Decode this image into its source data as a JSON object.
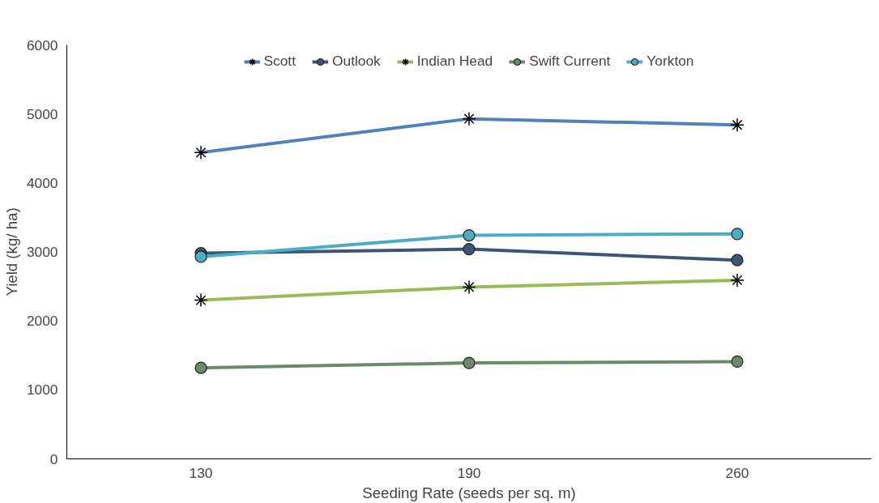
{
  "chart_data": {
    "type": "line",
    "xlabel": "Seeding Rate (seeds per sq. m)",
    "ylabel": "Yield (kg/ ha)",
    "categories": [
      "130",
      "190",
      "260"
    ],
    "ylim": [
      0,
      6000
    ],
    "yticks": [
      0,
      1000,
      2000,
      3000,
      4000,
      5000,
      6000
    ],
    "grid": false,
    "legend": "top",
    "series": [
      {
        "name": "Scott",
        "color": "#4f81bd",
        "marker": "cross",
        "values": [
          4440,
          4930,
          4840
        ]
      },
      {
        "name": "Outlook",
        "color": "#3b5675",
        "marker": "circle",
        "values": [
          2980,
          3040,
          2880
        ]
      },
      {
        "name": "Indian Head",
        "color": "#9bbb59",
        "marker": "cross",
        "values": [
          2300,
          2490,
          2590
        ]
      },
      {
        "name": "Swift Current",
        "color": "#6a8a6a",
        "marker": "circle",
        "values": [
          1320,
          1390,
          1410
        ]
      },
      {
        "name": "Yorkton",
        "color": "#4bacc6",
        "marker": "circle",
        "values": [
          2930,
          3240,
          3260
        ]
      }
    ]
  }
}
